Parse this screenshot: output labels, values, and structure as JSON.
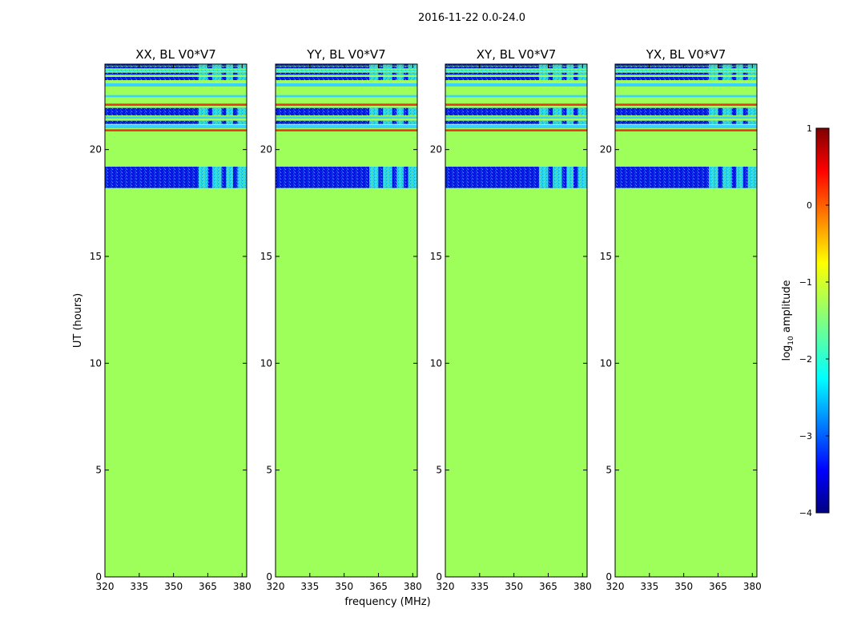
{
  "figure": {
    "suptitle": "2016-11-22 0.0-24.0",
    "xlabel": "frequency (MHz)",
    "ylabel": "UT (hours)"
  },
  "chart_data": {
    "type": "heatmap",
    "baseline": "BL V0*V7",
    "panels": [
      {
        "title": "XX, BL V0*V7",
        "pol": "XX"
      },
      {
        "title": "YY, BL V0*V7",
        "pol": "YY"
      },
      {
        "title": "XY, BL V0*V7",
        "pol": "XY"
      },
      {
        "title": "YX, BL V0*V7",
        "pol": "YX"
      }
    ],
    "x_range": [
      320,
      382
    ],
    "x_ticks": [
      320,
      335,
      350,
      365,
      380
    ],
    "y_range": [
      0,
      24
    ],
    "y_ticks": [
      0,
      5,
      10,
      15,
      20
    ],
    "fill_value_log10": -1.25,
    "bands": [
      {
        "y0": 18.2,
        "y1": 19.2,
        "level": "low"
      },
      {
        "y0": 20.85,
        "y1": 20.95,
        "level": "red"
      },
      {
        "y0": 21.0,
        "y1": 21.15,
        "level": "line"
      },
      {
        "y0": 21.2,
        "y1": 21.35,
        "level": "low"
      },
      {
        "y0": 21.45,
        "y1": 21.55,
        "level": "line"
      },
      {
        "y0": 21.6,
        "y1": 21.95,
        "level": "low"
      },
      {
        "y0": 22.05,
        "y1": 22.15,
        "level": "red"
      },
      {
        "y0": 22.45,
        "y1": 22.55,
        "level": "line"
      },
      {
        "y0": 22.95,
        "y1": 23.1,
        "level": "line"
      },
      {
        "y0": 23.25,
        "y1": 23.4,
        "level": "low"
      },
      {
        "y0": 23.5,
        "y1": 23.6,
        "level": "low"
      },
      {
        "y0": 23.65,
        "y1": 23.75,
        "level": "cyan"
      },
      {
        "y0": 23.8,
        "y1": 23.9,
        "level": "low"
      },
      {
        "y0": 23.92,
        "y1": 24.0,
        "level": "low"
      }
    ],
    "rfi_freq_ranges": [
      [
        361,
        365
      ],
      [
        367,
        371
      ],
      [
        373,
        376
      ],
      [
        378,
        382
      ]
    ],
    "colorbar": {
      "label_main": "log",
      "label_sub": "10",
      "label_rest": " amplitude",
      "range": [
        -4,
        1
      ],
      "ticks": [
        "1",
        "0",
        "−1",
        "−2",
        "−3",
        "−4"
      ],
      "tick_values": [
        1,
        0,
        -1,
        -2,
        -3,
        -4
      ]
    }
  }
}
